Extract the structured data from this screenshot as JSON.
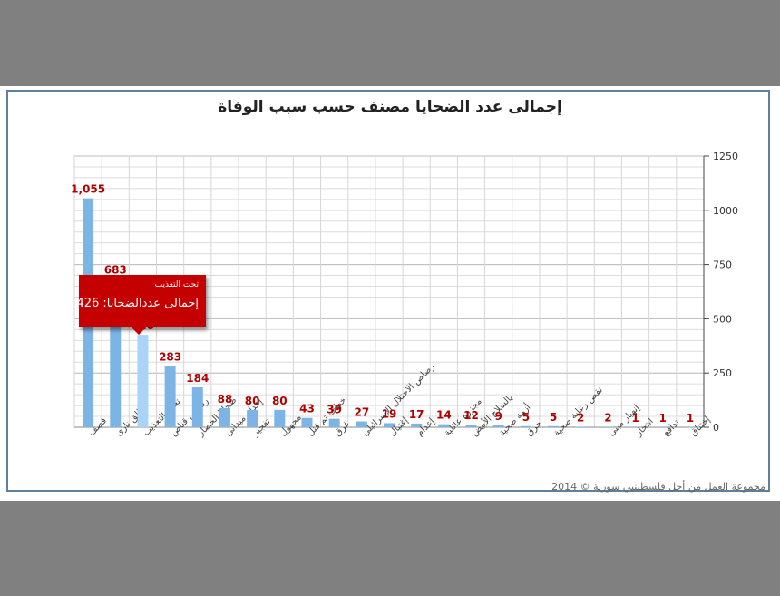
{
  "chart_data": {
    "type": "bar",
    "title": "إجمالى عدد الضحايا مصنف حسب سبب الوفاة",
    "categories": [
      "قصف",
      "طلق ناري",
      "تحت التعذيب",
      "رصاص قناص",
      "ضحايا الحصار",
      "إعدام ميداني",
      "تفجير",
      "مجهول",
      "خطف ثم قتل",
      "غرق",
      "رصاص الاحتلال الإسرائيلي",
      "إغتيال",
      "إعدام",
      "مجزرة عائلية",
      "بالسلاح الأبيض",
      "أزمة صحية",
      "حرق",
      "نقص رعاية صحية",
      "",
      "إنهيار مبنى",
      "انتحار",
      "تدافع",
      "إختناق"
    ],
    "values": [
      1055,
      683,
      426,
      283,
      184,
      88,
      80,
      80,
      43,
      39,
      27,
      19,
      17,
      14,
      12,
      9,
      5,
      5,
      2,
      2,
      1,
      1,
      1
    ],
    "value_labels": [
      "1,055",
      "683",
      "426",
      "283",
      "184",
      "88",
      "80",
      "80",
      "43",
      "39",
      "27",
      "19",
      "17",
      "14",
      "12",
      "9",
      "5",
      "5",
      "2",
      "2",
      "1",
      "1",
      "1"
    ],
    "yticks": [
      "0",
      "250",
      "500",
      "750",
      "1000",
      "1250"
    ],
    "ylim": [
      0,
      1250
    ],
    "y_axis_side": "right",
    "grid": true,
    "bar_color": "#7cb4e6",
    "highlight_color": "#a9d3f7",
    "label_color": "#b00000",
    "highlight_index": 2
  },
  "tooltip": {
    "category": "تحت التعذيب",
    "line": "إجمالى عددالضحايا: 426"
  },
  "credit": "مجموعة العمل من أجل فلسطينيي سورية © 2014"
}
